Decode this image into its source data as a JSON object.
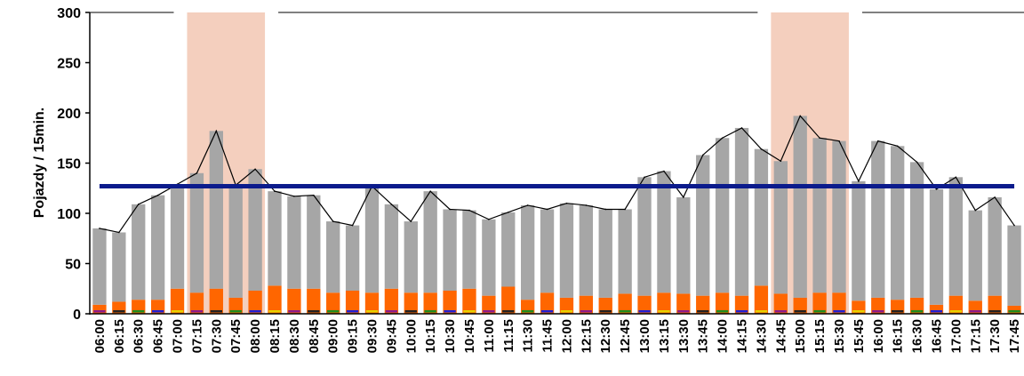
{
  "chart_data": {
    "type": "bar",
    "title": "",
    "xlabel": "",
    "ylabel": "Pojazdy / 15min.",
    "ylim": [
      0,
      300
    ],
    "yticks": [
      "0",
      "50",
      "100",
      "150",
      "200",
      "250",
      "300"
    ],
    "grid": false,
    "categories": [
      "06:00",
      "06:15",
      "06:30",
      "06:45",
      "07:00",
      "07:15",
      "07:30",
      "07:45",
      "08:00",
      "08:15",
      "08:30",
      "08:45",
      "09:00",
      "09:15",
      "09:30",
      "09:45",
      "10:00",
      "10:15",
      "10:30",
      "10:45",
      "11:00",
      "11:15",
      "11:30",
      "11:45",
      "12:00",
      "12:15",
      "12:30",
      "12:45",
      "13:00",
      "13:15",
      "13:30",
      "13:45",
      "14:00",
      "14:15",
      "14:30",
      "14:45",
      "15:00",
      "15:15",
      "15:30",
      "15:45",
      "16:00",
      "16:15",
      "16:30",
      "16:45",
      "17:00",
      "17:15",
      "17:30",
      "17:45"
    ],
    "series": [
      {
        "color": "#ff6600",
        "values": [
          9,
          12,
          14,
          14,
          25,
          21,
          25,
          16,
          23,
          28,
          25,
          25,
          21,
          23,
          21,
          25,
          21,
          21,
          23,
          25,
          18,
          27,
          14,
          21,
          16,
          18,
          16,
          20,
          18,
          21,
          20,
          18,
          21,
          18,
          28,
          20,
          16,
          21,
          21,
          13,
          16,
          14,
          16,
          9,
          18,
          13,
          18,
          8
        ]
      },
      {
        "color": "#a6a6a6",
        "values": [
          76,
          69,
          95,
          104,
          104,
          119,
          157,
          112,
          121,
          94,
          92,
          93,
          71,
          65,
          106,
          84,
          71,
          101,
          81,
          78,
          76,
          74,
          94,
          83,
          94,
          90,
          88,
          84,
          118,
          121,
          96,
          140,
          154,
          167,
          136,
          132,
          181,
          154,
          151,
          119,
          156,
          153,
          135,
          115,
          118,
          90,
          98,
          80
        ]
      }
    ],
    "total_line": {
      "color": "#000000",
      "values": [
        85,
        81,
        109,
        118,
        129,
        140,
        182,
        128,
        144,
        122,
        117,
        118,
        92,
        88,
        127,
        109,
        92,
        122,
        104,
        103,
        94,
        101,
        108,
        104,
        110,
        108,
        104,
        104,
        136,
        142,
        116,
        158,
        175,
        185,
        164,
        152,
        197,
        175,
        172,
        132,
        172,
        167,
        151,
        124,
        136,
        103,
        116,
        88
      ]
    },
    "reference_line": {
      "value": 127,
      "color": "#0b1b8c"
    },
    "highlight_bands": [
      {
        "from": "07:15",
        "to": "08:00"
      },
      {
        "from": "14:45",
        "to": "15:30"
      }
    ],
    "highlight_color": "#f2c7b3",
    "minor_stripes": [
      "#1f1fd6",
      "#8b1a8b",
      "#1e8c1e",
      "#e6d200",
      "#222222"
    ]
  }
}
